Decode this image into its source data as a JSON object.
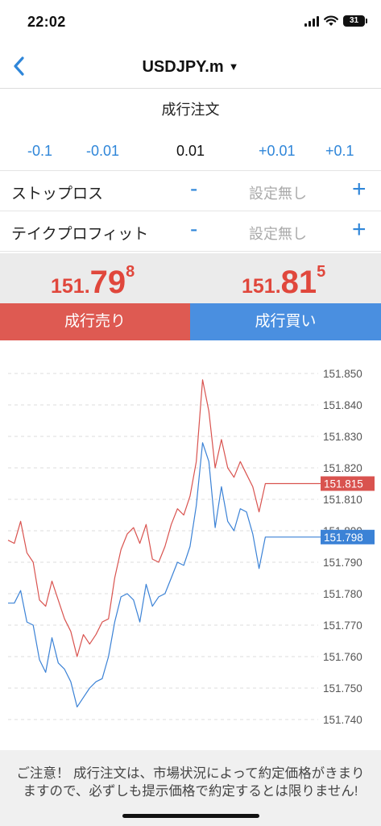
{
  "status_bar": {
    "time": "22:02",
    "battery": "31",
    "icons": [
      "signal-icon",
      "wifi-icon",
      "battery-icon"
    ]
  },
  "nav": {
    "back_icon": "chevron-left-icon",
    "title": "USDJPY.m",
    "title_caret": "▼"
  },
  "order_type": "成行注文",
  "volume": {
    "minus_large": "-0.1",
    "minus_small": "-0.01",
    "value": "0.01",
    "plus_small": "+0.01",
    "plus_large": "+0.1"
  },
  "stop_loss": {
    "label": "ストップロス",
    "minus": "-",
    "value": "設定無し",
    "plus": "+"
  },
  "take_profit": {
    "label": "テイクプロフィット",
    "minus": "-",
    "value": "設定無し",
    "plus": "+"
  },
  "bid": {
    "prefix": "151.",
    "big": "79",
    "sup": "8"
  },
  "ask": {
    "prefix": "151.",
    "big": "81",
    "sup": "5"
  },
  "sell_label": "成行売り",
  "buy_label": "成行買い",
  "colors": {
    "accent_blue": "#2f86d9",
    "sell_red": "#de5a52",
    "buy_blue": "#4a8fe0",
    "ask_line": "#d9534f",
    "bid_line": "#3b82d6"
  },
  "notice": "ご注意！ 成行注文は、市場状況によって約定価格がきまりますので、必ずしも提示価格で約定するとは限りません!",
  "chart_data": {
    "type": "line",
    "ylim": [
      151.735,
      151.855
    ],
    "y_ticks": [
      "151.850",
      "151.840",
      "151.830",
      "151.820",
      "151.810",
      "151.800",
      "151.790",
      "151.780",
      "151.770",
      "151.760",
      "151.750",
      "151.740"
    ],
    "grid": true,
    "series": [
      {
        "color": "#d9534f",
        "last_label": "151.815",
        "values": [
          151.797,
          151.796,
          151.803,
          151.793,
          151.79,
          151.778,
          151.776,
          151.784,
          151.778,
          151.772,
          151.768,
          151.76,
          151.767,
          151.764,
          151.767,
          151.771,
          151.772,
          151.785,
          151.794,
          151.799,
          151.801,
          151.796,
          151.802,
          151.791,
          151.79,
          151.795,
          151.802,
          151.807,
          151.805,
          151.811,
          151.822,
          151.848,
          151.838,
          151.82,
          151.829,
          151.82,
          151.817,
          151.822,
          151.818,
          151.814,
          151.806,
          151.815,
          151.815,
          151.815
        ]
      },
      {
        "color": "#3b82d6",
        "last_label": "151.798",
        "values": [
          151.777,
          151.777,
          151.781,
          151.771,
          151.77,
          151.759,
          151.755,
          151.766,
          151.758,
          151.756,
          151.752,
          151.744,
          151.747,
          151.75,
          151.752,
          151.753,
          151.76,
          151.771,
          151.779,
          151.78,
          151.778,
          151.771,
          151.783,
          151.776,
          151.779,
          151.78,
          151.785,
          151.79,
          151.789,
          151.795,
          151.808,
          151.828,
          151.822,
          151.801,
          151.814,
          151.803,
          151.8,
          151.807,
          151.806,
          151.799,
          151.788,
          151.798,
          151.798,
          151.798
        ]
      }
    ]
  }
}
